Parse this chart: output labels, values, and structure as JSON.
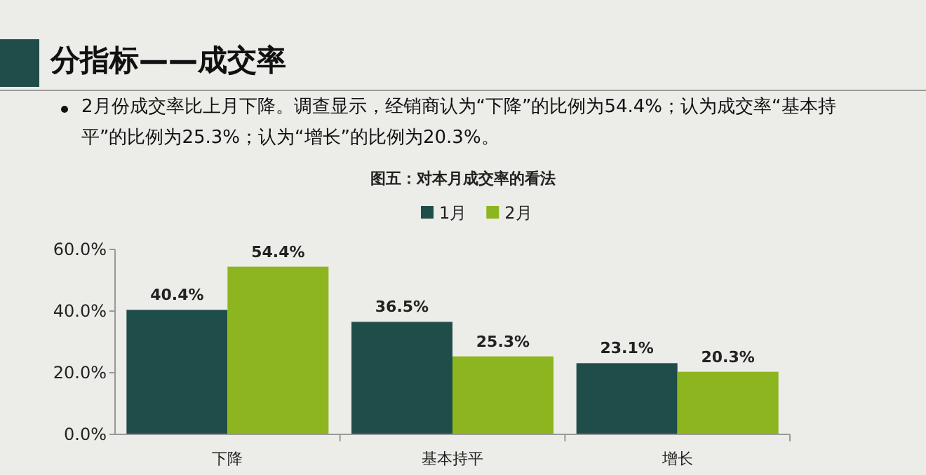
{
  "chart_data": {
    "type": "bar",
    "title": "图五：对本月成交率的看法",
    "annotations": [
      "分指标——成交率",
      "2月份成交率比上月下降。调查显示，经销商认为“下降”的比例为54.4%；认为成交率“基本持平”的比例为25.3%；认为“增长”的比例为20.3%。"
    ],
    "categories": [
      "下降",
      "基本持平",
      "增长"
    ],
    "series": [
      {
        "name": "1月",
        "color": "#1f4d4a",
        "values": [
          40.4,
          36.5,
          23.1
        ],
        "value_labels": [
          "40.4%",
          "36.5%",
          "23.1%"
        ]
      },
      {
        "name": "2月",
        "color": "#8db51f",
        "values": [
          54.4,
          25.3,
          20.3
        ],
        "value_labels": [
          "54.4%",
          "25.3%",
          "20.3%"
        ]
      }
    ],
    "ylim": [
      0,
      60
    ],
    "yticks": [
      {
        "value": 0,
        "label": "0.0%"
      },
      {
        "value": 20,
        "label": "20.0%"
      },
      {
        "value": 40,
        "label": "40.0%"
      },
      {
        "value": 60,
        "label": "60.0%"
      }
    ],
    "legend": "top",
    "grid": false
  }
}
